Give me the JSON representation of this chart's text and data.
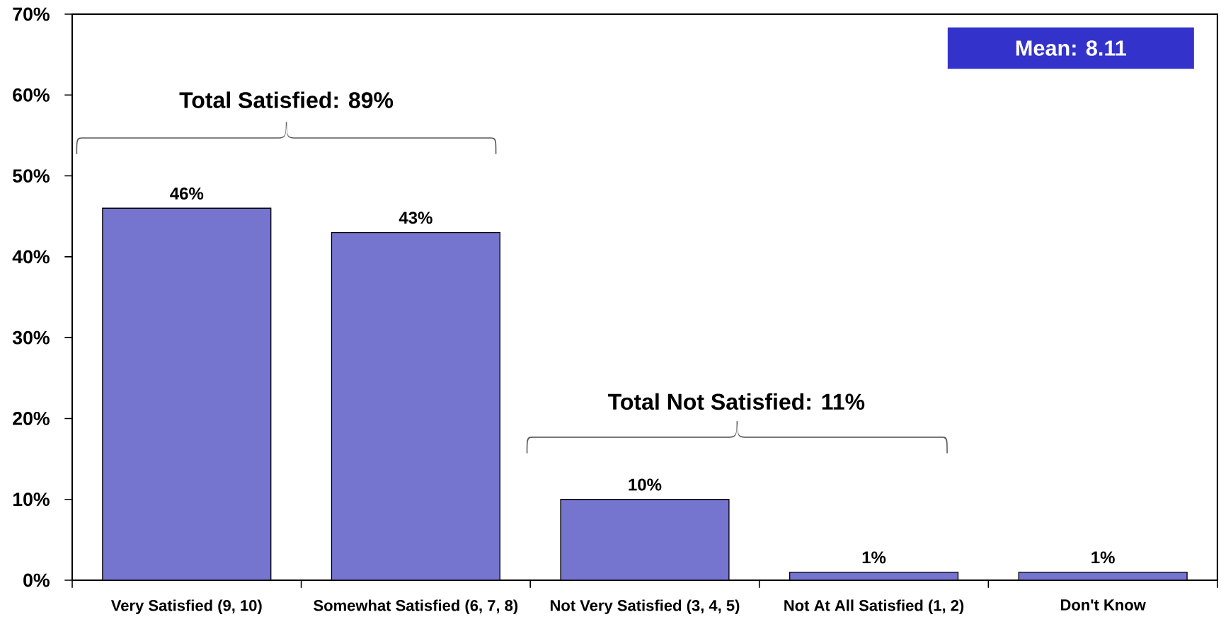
{
  "chart_data": {
    "type": "bar",
    "categories": [
      "Very Satisfied (9, 10)",
      "Somewhat Satisfied (6, 7, 8)",
      "Not Very Satisfied (3, 4, 5)",
      "Not At All Satisfied (1, 2)",
      "Don't Know"
    ],
    "values": [
      46,
      43,
      10,
      1,
      1
    ],
    "value_labels": [
      "46%",
      "43%",
      "10%",
      "1%",
      "1%"
    ],
    "color": "#7575cf",
    "ylim": [
      0,
      70
    ],
    "yticks": [
      {
        "value": 0,
        "label": "0%"
      },
      {
        "value": 10,
        "label": "10%"
      },
      {
        "value": 20,
        "label": "20%"
      },
      {
        "value": 30,
        "label": "30%"
      },
      {
        "value": 40,
        "label": "40%"
      },
      {
        "value": 50,
        "label": "50%"
      },
      {
        "value": 60,
        "label": "60%"
      },
      {
        "value": 70,
        "label": "70%"
      }
    ],
    "annotations": [
      "Total Satisfied: 89%",
      "Total Not Satisfied: 11%",
      "Mean: 8.11"
    ]
  }
}
